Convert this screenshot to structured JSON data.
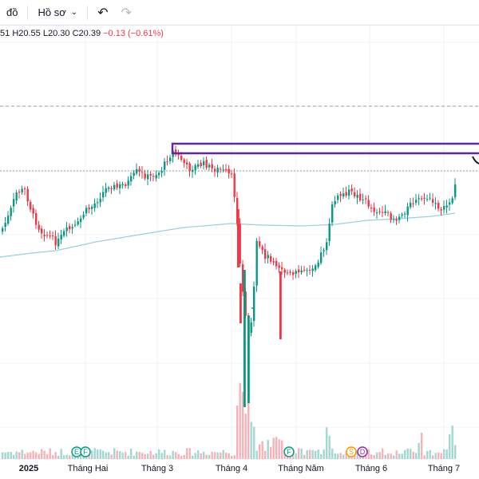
{
  "toolbar": {
    "chart_menu_label": "đồ",
    "profile_menu_label": "Hồ sơ",
    "undo_icon": "undo-icon",
    "redo_icon": "redo-icon"
  },
  "legend": {
    "open_fragment": "51",
    "high_label": "H",
    "high_value": "20.55",
    "low_label": "L",
    "low_value": "20.30",
    "close_label": "C",
    "close_value": "20.39",
    "change": "−0.13 (−0.61%)"
  },
  "colors": {
    "up": "#089981",
    "down": "#f23645",
    "vol_up": "#a2d8cf",
    "vol_down": "#f8b2b7",
    "ma": "#9ccfe0",
    "rect": "#5b2a9e",
    "grid": "#f0f3fa",
    "ref_line": "#9e9e9e"
  },
  "chart_data": {
    "type": "candlestick",
    "title": "",
    "x_labels": [
      "2025",
      "Tháng Hai",
      "Tháng 3",
      "Tháng 4",
      "Tháng Năm",
      "Tháng 6",
      "Tháng 7"
    ],
    "events": [
      {
        "letter": "E",
        "color": "#089981",
        "month": "Tháng Hai"
      },
      {
        "letter": "F",
        "color": "#089981",
        "month": "Tháng Hai"
      },
      {
        "letter": "F",
        "color": "#089981",
        "month": "Tháng Năm"
      },
      {
        "letter": "S",
        "color": "#ff9800",
        "month": "Tháng 6"
      },
      {
        "letter": "D",
        "color": "#9c27b0",
        "month": "Tháng 6"
      }
    ],
    "last_close": 20.39,
    "last_high": 20.55,
    "last_low": 20.3,
    "change": -0.13,
    "change_pct": -0.61
  }
}
